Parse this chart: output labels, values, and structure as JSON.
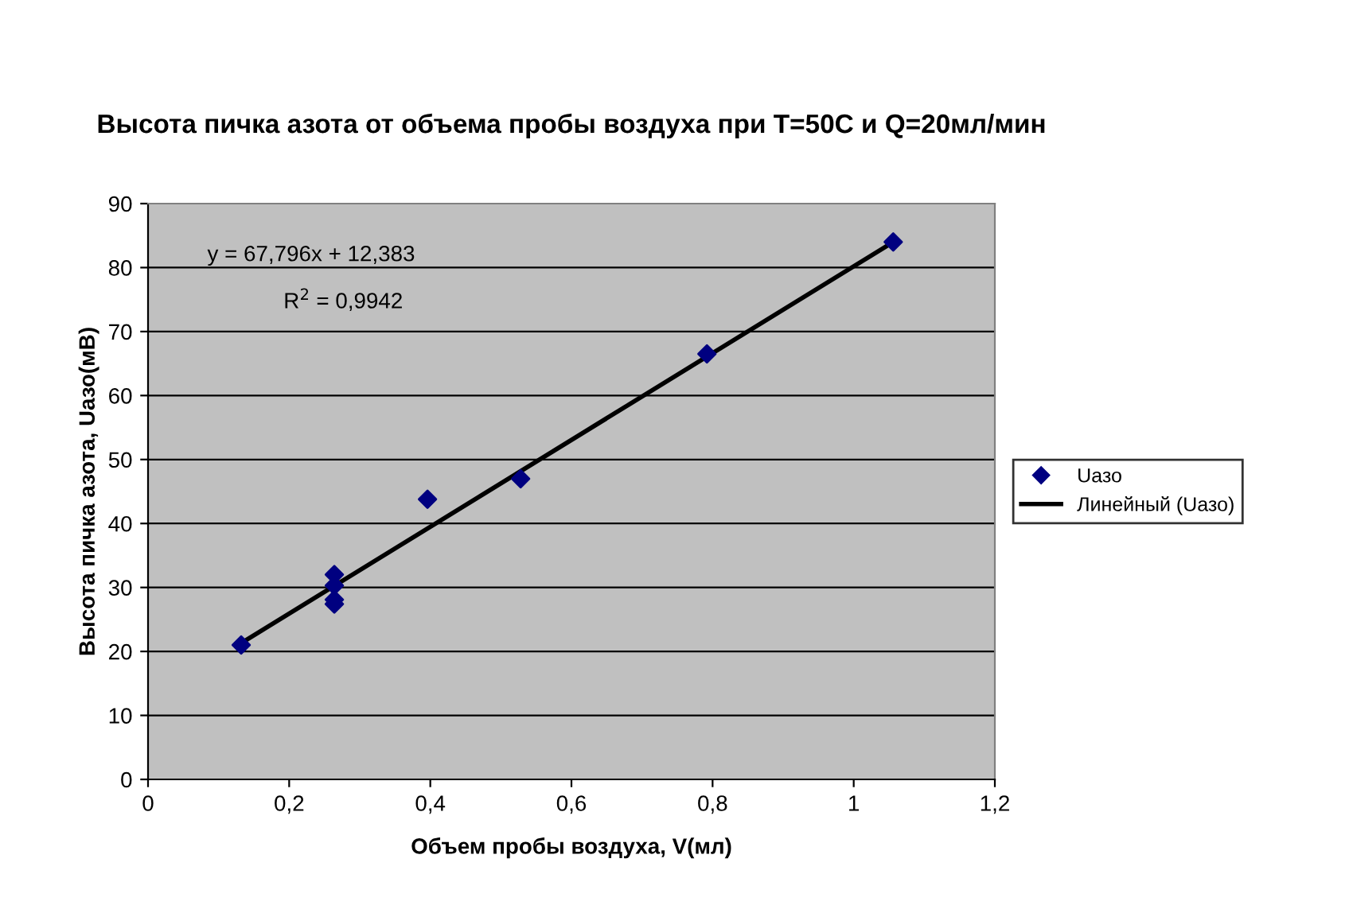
{
  "chart_data": {
    "type": "scatter",
    "title": "Высота пичка азота от объема пробы воздуха при Т=50С и Q=20мл/мин",
    "xlabel": "Объем пробы воздуха, V(мл)",
    "ylabel": "Высота пичка азота, Uазо(мВ)",
    "series": [
      {
        "name": "Uазо",
        "color": "#000080",
        "marker": "diamond",
        "x": [
          0.132,
          0.264,
          0.264,
          0.264,
          0.264,
          0.396,
          0.528,
          0.792,
          1.056
        ],
        "values": [
          21,
          32,
          30.3,
          28.1,
          27.4,
          43.8,
          47,
          66.5,
          84
        ]
      },
      {
        "name": "Линейный (Uазо)",
        "type": "line",
        "color": "#000000",
        "marker": "none",
        "line_style": "solid",
        "x": [
          0.132,
          1.056
        ],
        "values": [
          21.3,
          84
        ]
      }
    ],
    "annotations": [
      "y = 67,796x + 12,383",
      "R$^{2}$ = 0,9942"
    ],
    "xlim": [
      0,
      1.2
    ],
    "xticks": [
      0,
      {
        "value": 0.2,
        "label": "0,2"
      },
      {
        "value": 0.4,
        "label": "0,4"
      },
      {
        "value": 0.6,
        "label": "0,6"
      },
      {
        "value": 0.8,
        "label": "0,8"
      },
      1,
      {
        "value": 1.2,
        "label": "1,2"
      }
    ],
    "ylim": [
      0,
      90
    ],
    "yticks": [
      0,
      10,
      20,
      30,
      40,
      50,
      60,
      70,
      80,
      90
    ],
    "grid": "y",
    "legend": "right"
  }
}
